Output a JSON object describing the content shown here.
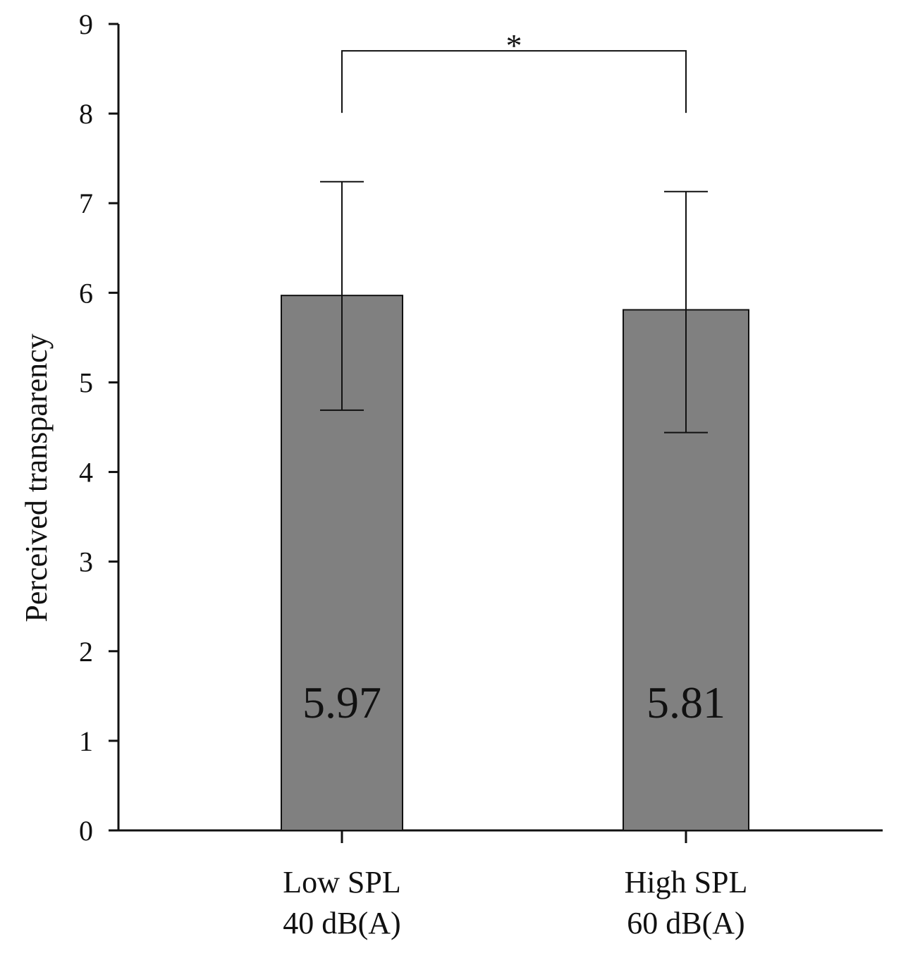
{
  "chart_data": {
    "type": "bar",
    "title": "",
    "xlabel": "",
    "ylabel": "Perceived transparency",
    "ylim": [
      0,
      9
    ],
    "yticks": [
      0,
      1,
      2,
      3,
      4,
      5,
      6,
      7,
      8,
      9
    ],
    "grid": false,
    "categories": [
      {
        "line1": "Low SPL",
        "line2": "40 dB(A)"
      },
      {
        "line1": "High SPL",
        "line2": "60 dB(A)"
      }
    ],
    "values": [
      5.97,
      5.81
    ],
    "value_labels": [
      "5.97",
      "5.81"
    ],
    "error_bars": [
      {
        "low": 4.69,
        "high": 7.24
      },
      {
        "low": 4.44,
        "high": 7.13
      }
    ],
    "bar_color": "#808080",
    "significance": {
      "between": [
        0,
        1
      ],
      "y": 8.7,
      "label": "*"
    }
  }
}
